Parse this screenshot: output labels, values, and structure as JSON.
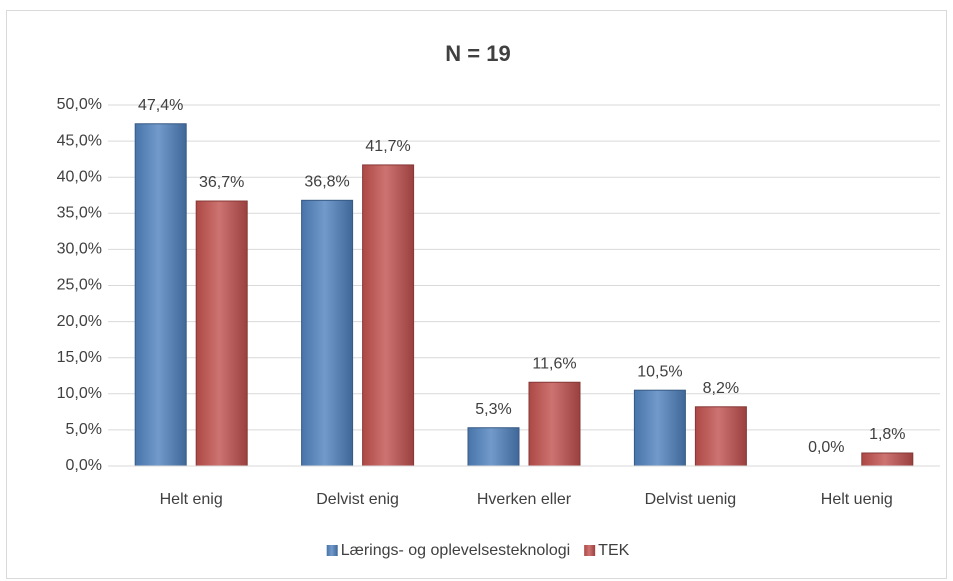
{
  "chart_data": {
    "type": "bar",
    "title": "N = 19",
    "categories": [
      "Helt enig",
      "Delvist enig",
      "Hverken eller",
      "Delvist uenig",
      "Helt uenig"
    ],
    "series": [
      {
        "name": "Lærings- og oplevelsesteknologi",
        "color": "#4f81bd",
        "values": [
          47.4,
          36.8,
          5.3,
          10.5,
          0.0
        ],
        "value_labels": [
          "47,4%",
          "36,8%",
          "5,3%",
          "10,5%",
          "0,0%"
        ]
      },
      {
        "name": "TEK",
        "color": "#c0504d",
        "values": [
          36.7,
          41.7,
          11.6,
          8.2,
          1.8
        ],
        "value_labels": [
          "36,7%",
          "41,7%",
          "11,6%",
          "8,2%",
          "1,8%"
        ]
      }
    ],
    "ylim": [
      0,
      50
    ],
    "yticks": [
      {
        "value": 0,
        "label": "0,0%"
      },
      {
        "value": 5,
        "label": "5,0%"
      },
      {
        "value": 10,
        "label": "10,0%"
      },
      {
        "value": 15,
        "label": "15,0%"
      },
      {
        "value": 20,
        "label": "20,0%"
      },
      {
        "value": 25,
        "label": "25,0%"
      },
      {
        "value": 30,
        "label": "30,0%"
      },
      {
        "value": 35,
        "label": "35,0%"
      },
      {
        "value": 40,
        "label": "40,0%"
      },
      {
        "value": 45,
        "label": "45,0%"
      },
      {
        "value": 50,
        "label": "50,0%"
      }
    ],
    "grid": true,
    "legend": "bottom"
  }
}
